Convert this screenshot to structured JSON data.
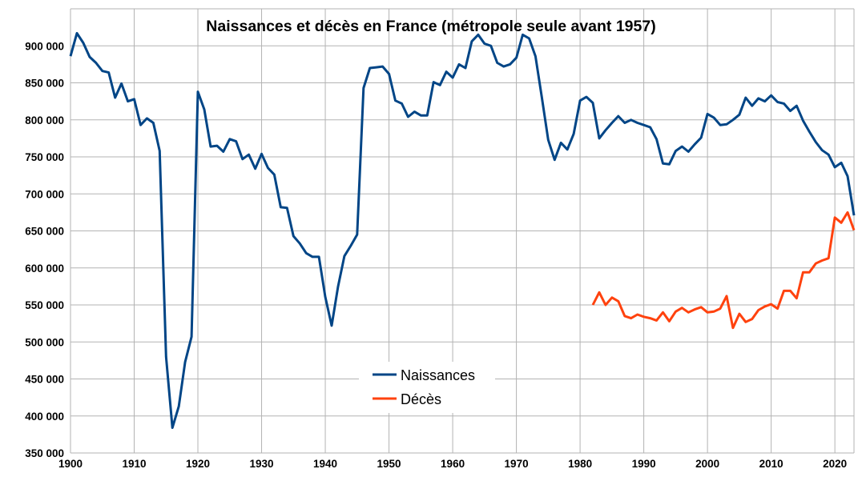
{
  "chart_data": {
    "type": "line",
    "title": "Naissances et décès en France (métropole seule avant 1957)",
    "xlabel": "",
    "ylabel": "",
    "xlim": [
      1900,
      2023
    ],
    "ylim": [
      350000,
      950000
    ],
    "grid": true,
    "legend_position": "bottom-center",
    "x_ticks": [
      "1900",
      "1910",
      "1920",
      "1930",
      "1940",
      "1950",
      "1960",
      "1970",
      "1980",
      "1990",
      "2000",
      "2010",
      "2020"
    ],
    "y_ticks": [
      "350 000",
      "400 000",
      "450 000",
      "500 000",
      "550 000",
      "600 000",
      "650 000",
      "700 000",
      "750 000",
      "800 000",
      "850 000",
      "900 000"
    ],
    "series": [
      {
        "name": "Naissances",
        "color": "#004586",
        "start_year": 1900,
        "values": [
          886000,
          917000,
          904000,
          885000,
          877000,
          866000,
          864000,
          830000,
          849000,
          825000,
          828000,
          793000,
          802000,
          796000,
          758000,
          480000,
          384000,
          413000,
          473000,
          507000,
          838000,
          814000,
          764000,
          765000,
          757000,
          774000,
          771000,
          747000,
          753000,
          734000,
          754000,
          735000,
          726000,
          682000,
          681000,
          643000,
          633000,
          620000,
          615000,
          615000,
          561000,
          522000,
          575000,
          616000,
          630000,
          645000,
          843000,
          870000,
          871000,
          872000,
          862000,
          826000,
          822000,
          804000,
          811000,
          806000,
          806000,
          851000,
          847000,
          865000,
          857000,
          875000,
          870000,
          906000,
          915000,
          903000,
          900000,
          877000,
          872000,
          875000,
          884000,
          915000,
          910000,
          886000,
          830000,
          773000,
          746000,
          769000,
          760000,
          781000,
          826000,
          831000,
          823000,
          775000,
          786000,
          796000,
          805000,
          796000,
          800000,
          796000,
          793000,
          790000,
          774000,
          741000,
          740000,
          758000,
          764000,
          757000,
          767000,
          776000,
          808000,
          803000,
          793000,
          794000,
          800000,
          807000,
          830000,
          819000,
          829000,
          825000,
          833000,
          824000,
          822000,
          812000,
          819000,
          799000,
          784000,
          770000,
          759000,
          753000,
          736000,
          742000,
          724000,
          671000
        ]
      },
      {
        "name": "Décès",
        "color": "#ff420e",
        "start_year": 1982,
        "values": [
          550000,
          567000,
          550000,
          560000,
          555000,
          535000,
          532000,
          537000,
          534000,
          532000,
          529000,
          540000,
          528000,
          541000,
          546000,
          540000,
          544000,
          547000,
          540000,
          541000,
          545000,
          562000,
          519000,
          538000,
          527000,
          531000,
          543000,
          548000,
          551000,
          545000,
          569000,
          569000,
          559000,
          594000,
          594000,
          606000,
          610000,
          613000,
          668000,
          661000,
          675000,
          651000
        ]
      }
    ]
  }
}
